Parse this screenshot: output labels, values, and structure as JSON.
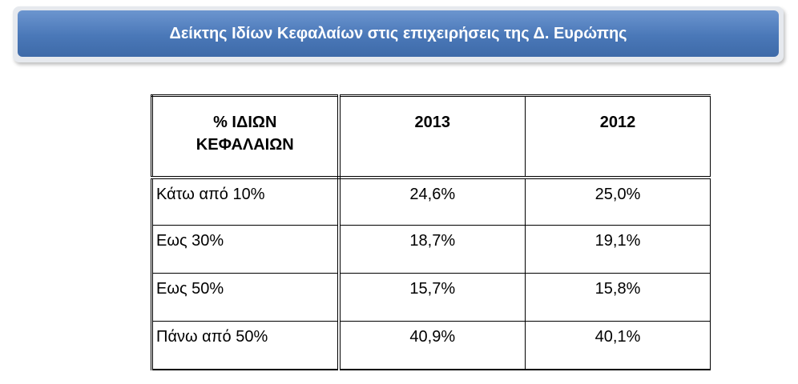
{
  "header": {
    "title": "Δείκτης Ιδίων Κεφαλαίων στις επιχειρήσεις της Δ. Ευρώπης"
  },
  "table": {
    "columns": [
      "% ΙΔΙΩΝ ΚΕΦΑΛΑΙΩΝ",
      "2013",
      "2012"
    ],
    "rows": [
      [
        "Κάτω από 10%",
        "24,6%",
        "25,0%"
      ],
      [
        "Εως 30%",
        "18,7%",
        "19,1%"
      ],
      [
        "Εως 50%",
        "15,7%",
        "15,8%"
      ],
      [
        "Πάνω από 50%",
        "40,9%",
        "40,1%"
      ]
    ]
  }
}
